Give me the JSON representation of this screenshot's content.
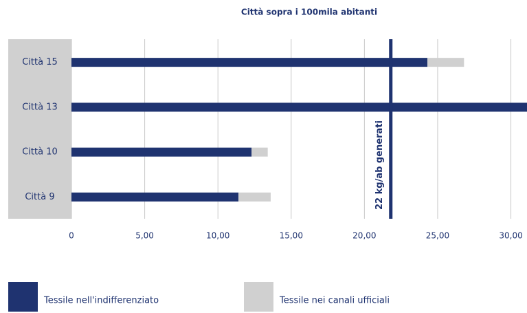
{
  "chart_data": {
    "type": "bar",
    "orientation": "horizontal",
    "stacked": true,
    "title": "Città sopra i 100mila abitanti",
    "categories": [
      "Città 15",
      "Città 13",
      "Città 10",
      "Città 9"
    ],
    "series": [
      {
        "name": "Tessile nell'indifferenziato",
        "color": "#1f3370",
        "values": [
          24.3,
          32,
          12.3,
          11.4
        ]
      },
      {
        "name": "Tessile nei canali ufficiali",
        "color": "#d0d0d0",
        "values": [
          2.5,
          0,
          1.1,
          2.2
        ]
      }
    ],
    "xlim": [
      0,
      31.1
    ],
    "xticks": [
      0,
      {
        "value": 5,
        "label": "5,00"
      },
      {
        "value": 10,
        "label": "10,00"
      },
      {
        "value": 15,
        "label": "15,00"
      },
      {
        "value": 20,
        "label": "20,00"
      },
      {
        "value": 25,
        "label": "25,00"
      },
      {
        "value": 30,
        "label": "30,00"
      }
    ],
    "grid": true,
    "reference_line": {
      "value": 21.8,
      "label": "22 kg/ab generati",
      "color": "#1f3370"
    },
    "legend": "bottom"
  }
}
